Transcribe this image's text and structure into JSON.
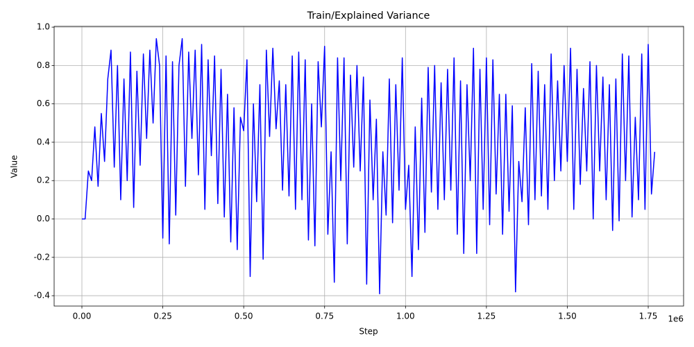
{
  "chart_data": {
    "type": "line",
    "title": "Train/Explained Variance",
    "x_label": "Step",
    "y_label": "Value",
    "x_offset_label": "1e6",
    "x": [
      0,
      10000,
      20000,
      30000,
      40000,
      50000,
      60000,
      70000,
      80000,
      90000,
      100000,
      110000,
      120000,
      130000,
      140000,
      150000,
      160000,
      170000,
      180000,
      190000,
      200000,
      210000,
      220000,
      230000,
      240000,
      250000,
      260000,
      270000,
      280000,
      290000,
      300000,
      310000,
      320000,
      330000,
      340000,
      350000,
      360000,
      370000,
      380000,
      390000,
      400000,
      410000,
      420000,
      430000,
      440000,
      450000,
      460000,
      470000,
      480000,
      490000,
      500000,
      510000,
      520000,
      530000,
      540000,
      550000,
      560000,
      570000,
      580000,
      590000,
      600000,
      610000,
      620000,
      630000,
      640000,
      650000,
      660000,
      670000,
      680000,
      690000,
      700000,
      710000,
      720000,
      730000,
      740000,
      750000,
      760000,
      770000,
      780000,
      790000,
      800000,
      810000,
      820000,
      830000,
      840000,
      850000,
      860000,
      870000,
      880000,
      890000,
      900000,
      910000,
      920000,
      930000,
      940000,
      950000,
      960000,
      970000,
      980000,
      990000,
      1000000,
      1010000,
      1020000,
      1030000,
      1040000,
      1050000,
      1060000,
      1070000,
      1080000,
      1090000,
      1100000,
      1110000,
      1120000,
      1130000,
      1140000,
      1150000,
      1160000,
      1170000,
      1180000,
      1190000,
      1200000,
      1210000,
      1220000,
      1230000,
      1240000,
      1250000,
      1260000,
      1270000,
      1280000,
      1290000,
      1300000,
      1310000,
      1320000,
      1330000,
      1340000,
      1350000,
      1360000,
      1370000,
      1380000,
      1390000,
      1400000,
      1410000,
      1420000,
      1430000,
      1440000,
      1450000,
      1460000,
      1470000,
      1480000,
      1490000,
      1500000,
      1510000,
      1520000,
      1530000,
      1540000,
      1550000,
      1560000,
      1570000,
      1580000,
      1590000,
      1600000,
      1610000,
      1620000,
      1630000,
      1640000,
      1650000,
      1660000,
      1670000,
      1680000,
      1690000,
      1700000,
      1710000,
      1720000,
      1730000,
      1740000,
      1750000,
      1760000,
      1770000
    ],
    "series": [
      {
        "color": "#0000ff",
        "values": [
          0,
          0,
          0.25,
          0.2,
          0.48,
          0.17,
          0.55,
          0.3,
          0.73,
          0.88,
          0.27,
          0.8,
          0.1,
          0.73,
          0.2,
          0.87,
          0.06,
          0.77,
          0.28,
          0.86,
          0.42,
          0.88,
          0.5,
          0.94,
          0.8,
          -0.1,
          0.85,
          -0.13,
          0.82,
          0.02,
          0.8,
          0.94,
          0.17,
          0.87,
          0.42,
          0.88,
          0.23,
          0.91,
          0.05,
          0.83,
          0.33,
          0.85,
          0.08,
          0.78,
          0.01,
          0.65,
          -0.12,
          0.58,
          -0.16,
          0.53,
          0.46,
          0.83,
          -0.3,
          0.6,
          0.09,
          0.7,
          -0.21,
          0.88,
          0.43,
          0.89,
          0.47,
          0.72,
          0.15,
          0.7,
          0.12,
          0.85,
          0.05,
          0.87,
          0.1,
          0.83,
          -0.11,
          0.6,
          -0.14,
          0.82,
          0.48,
          0.9,
          -0.08,
          0.35,
          -0.33,
          0.84,
          0.2,
          0.84,
          -0.13,
          0.75,
          0.27,
          0.8,
          0.25,
          0.74,
          -0.34,
          0.62,
          0.1,
          0.52,
          -0.39,
          0.35,
          0.02,
          0.73,
          -0.02,
          0.7,
          0.15,
          0.84,
          0.05,
          0.28,
          -0.3,
          0.48,
          -0.16,
          0.63,
          -0.07,
          0.79,
          0.14,
          0.8,
          0.05,
          0.71,
          0.1,
          0.78,
          0.15,
          0.84,
          -0.08,
          0.72,
          -0.18,
          0.7,
          0.2,
          0.89,
          -0.18,
          0.78,
          0.05,
          0.84,
          -0.03,
          0.83,
          0.13,
          0.65,
          -0.08,
          0.65,
          0.04,
          0.59,
          -0.38,
          0.3,
          0.09,
          0.58,
          -0.03,
          0.81,
          0.1,
          0.77,
          0.12,
          0.7,
          0.05,
          0.86,
          0.2,
          0.72,
          0.25,
          0.8,
          0.3,
          0.89,
          0.05,
          0.78,
          0.18,
          0.68,
          0.25,
          0.82,
          0.0,
          0.8,
          0.25,
          0.74,
          0.1,
          0.7,
          -0.06,
          0.73,
          -0.01,
          0.86,
          0.2,
          0.85,
          0.01,
          0.53,
          0.1,
          0.86,
          0.05,
          0.91,
          0.13,
          0.35
        ]
      }
    ],
    "xlim": [
      -85800,
      1859300
    ],
    "ylim": [
      -0.454,
      1.004
    ],
    "xticks": [
      {
        "value": 0,
        "label": "0.00"
      },
      {
        "value": 250000,
        "label": "0.25"
      },
      {
        "value": 500000,
        "label": "0.50"
      },
      {
        "value": 750000,
        "label": "0.75"
      },
      {
        "value": 1000000,
        "label": "1.00"
      },
      {
        "value": 1250000,
        "label": "1.25"
      },
      {
        "value": 1500000,
        "label": "1.50"
      },
      {
        "value": 1750000,
        "label": "1.75"
      }
    ],
    "yticks": [
      -0.4,
      -0.2,
      {
        "value": 0,
        "label": "0.0"
      },
      0.2,
      0.4,
      0.6,
      0.8,
      {
        "value": 1,
        "label": "1.0"
      }
    ],
    "grid": true
  }
}
